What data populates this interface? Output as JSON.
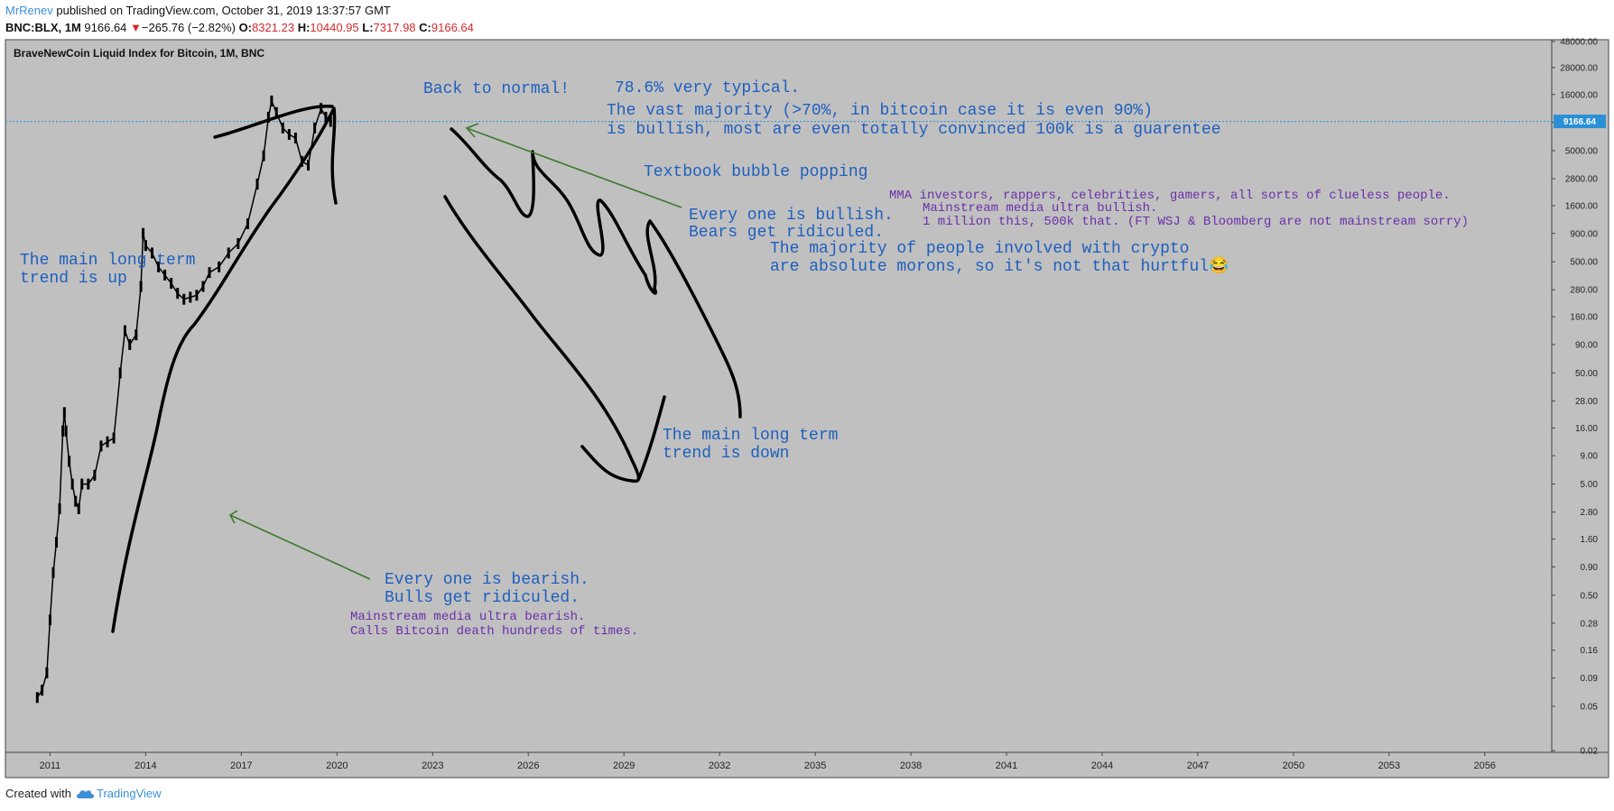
{
  "header": {
    "author": "MrRenev",
    "published_text": " published on TradingView.com, October 31, 2019 13:37:57 GMT",
    "symbol": "BNC:BLX, 1M",
    "price": "9166.64",
    "change_arrow": "▼",
    "change": "−265.76 (−2.82%)",
    "o_label": "O:",
    "o_value": "8321.23",
    "h_label": "H:",
    "h_value": "10440.95",
    "l_label": "L:",
    "l_value": "7317.98",
    "c_label": "C:",
    "c_value": "9166.64"
  },
  "footer": {
    "created_with": "Created with",
    "brand": "TradingView"
  },
  "colors": {
    "background": "#c0c0c0",
    "candle": "#000000",
    "annotation_blue": "#1e5fbf",
    "annotation_purple": "#6a2fa8",
    "arrow_green": "#3c7a2c",
    "price_tag": "#2a8fd6"
  },
  "chart_data": {
    "type": "line",
    "title": "BraveNewCoin Liquid Index for Bitcoin, 1M, BNC",
    "scale": "log",
    "x_ticks": [
      "2011",
      "2014",
      "2017",
      "2020",
      "2023",
      "2026",
      "2029",
      "2032",
      "2035",
      "2038",
      "2041",
      "2044",
      "2047",
      "2050",
      "2053",
      "2056"
    ],
    "y_ticks": [
      "48000.00",
      "28000.00",
      "16000.00",
      "9000.00",
      "5000.00",
      "2800.00",
      "1600.00",
      "900.00",
      "500.00",
      "280.00",
      "160.00",
      "90.00",
      "50.00",
      "28.00",
      "16.00",
      "9.00",
      "5.00",
      "2.80",
      "1.60",
      "0.90",
      "0.50",
      "0.28",
      "0.16",
      "0.09",
      "0.05",
      "0.02"
    ],
    "last_price_label": "9166.64",
    "last_price": 9166.64,
    "ylim": [
      0.02,
      48000
    ],
    "xlim": [
      2009.6,
      2058.1
    ],
    "series": [
      {
        "x": [
          2010.6,
          2010.75,
          2010.9,
          2011.0,
          2011.1,
          2011.2,
          2011.3,
          2011.4,
          2011.45,
          2011.5,
          2011.6,
          2011.7,
          2011.8,
          2011.9,
          2012.0,
          2012.2,
          2012.4,
          2012.6,
          2012.8,
          2013.0,
          2013.2,
          2013.35,
          2013.5,
          2013.7,
          2013.85,
          2013.92,
          2014.0,
          2014.2,
          2014.4,
          2014.6,
          2014.8,
          2015.0,
          2015.2,
          2015.4,
          2015.6,
          2015.8,
          2016.0,
          2016.3,
          2016.6,
          2016.9,
          2017.2,
          2017.5,
          2017.7,
          2017.85,
          2017.95,
          2018.1,
          2018.3,
          2018.5,
          2018.7,
          2018.9,
          2019.1,
          2019.3,
          2019.5,
          2019.65,
          2019.8
        ],
        "y": [
          0.06,
          0.07,
          0.1,
          0.3,
          0.8,
          1.5,
          3,
          15,
          22,
          15,
          8,
          5,
          3.5,
          3,
          5,
          5,
          6,
          11,
          12,
          13,
          50,
          120,
          90,
          110,
          300,
          900,
          700,
          600,
          450,
          380,
          320,
          260,
          230,
          240,
          250,
          300,
          400,
          450,
          600,
          730,
          1100,
          2500,
          4500,
          10000,
          14000,
          11000,
          8000,
          7000,
          6500,
          4000,
          3700,
          8000,
          12000,
          10000,
          9166.64
        ]
      }
    ]
  },
  "annotations": {
    "back_to_normal": "Back to normal!",
    "typical": "78.6% very typical.",
    "vast_majority_1": "The vast majority (>70%, in bitcoin case it is even 90%)",
    "vast_majority_2": "is bullish, most are even totally convinced 100k is a guarentee",
    "textbook": "Textbook bubble popping",
    "mma": "MMA investors, rappers, celebrities, gamers, all sorts of clueless people.",
    "media_bullish": "Mainstream media ultra bullish.",
    "million": "1 million this, 500k that. (FT WSJ & Bloomberg are not mainstream sorry)",
    "bullish_1": "Every one is bullish.",
    "bullish_2": "Bears get ridiculed.",
    "morons_1": "The majority of people involved with crypto",
    "morons_2": "are absolute morons, so it's not that hurtful😂",
    "trend_up_1": "The main long term",
    "trend_up_2": "trend is up",
    "trend_down_1": "The main long term",
    "trend_down_2": "trend is down",
    "bearish_1": "Every one is bearish.",
    "bearish_2": "Bulls get ridiculed.",
    "media_bearish": "Mainstream media ultra bearish.",
    "death": "Calls Bitcoin death hundreds of times."
  }
}
